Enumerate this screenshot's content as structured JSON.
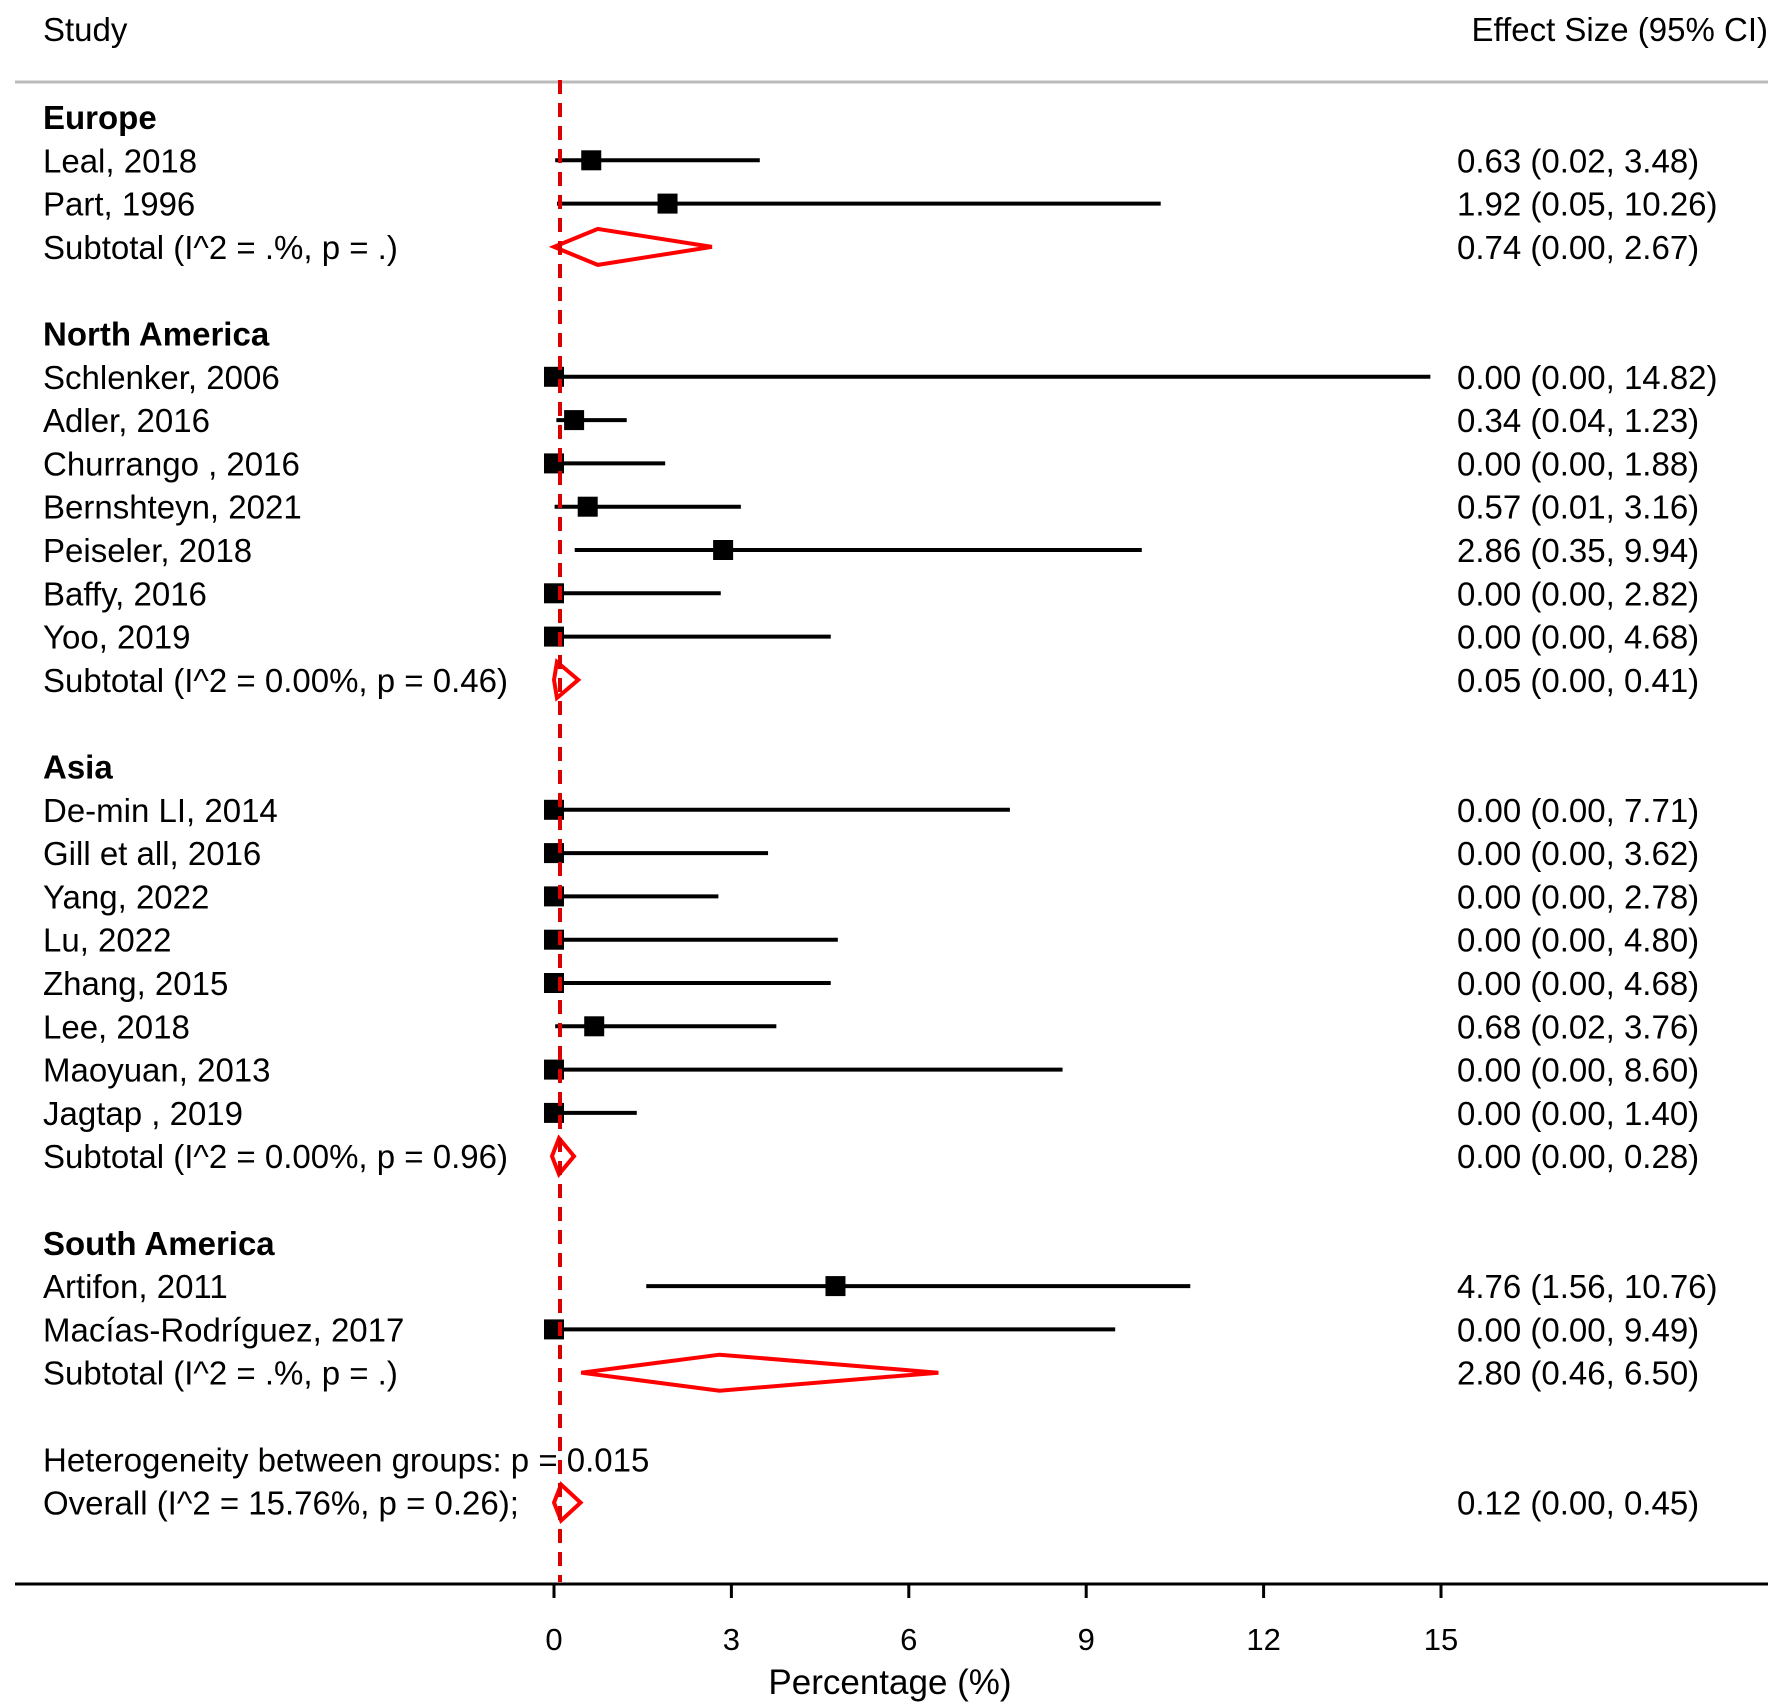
{
  "chart_data": {
    "type": "forest",
    "header": {
      "study": "Study",
      "effect": "Effect Size (95% CI)"
    },
    "xlabel": "Percentage (%)",
    "xticks": [
      0,
      3,
      6,
      9,
      12,
      15
    ],
    "xlim": [
      0,
      15
    ],
    "reference_line": 0,
    "colors": {
      "marker": "#000000",
      "diamond": "#ff0000",
      "reference": "#dd0000",
      "rule": "#bbbbbb"
    },
    "rows": [
      {
        "kind": "group",
        "label": "Europe"
      },
      {
        "kind": "study",
        "label": "Leal, 2018",
        "es": 0.63,
        "lo": 0.02,
        "hi": 3.48,
        "text": "0.63 (0.02, 3.48)"
      },
      {
        "kind": "study",
        "label": "Part, 1996",
        "es": 1.92,
        "lo": 0.05,
        "hi": 10.26,
        "text": "1.92 (0.05, 10.26)"
      },
      {
        "kind": "subtotal",
        "label": "Subtotal  (I^2 = .%, p = .)",
        "es": 0.74,
        "lo": 0.0,
        "hi": 2.67,
        "text": "0.74 (0.00, 2.67)"
      },
      {
        "kind": "gap"
      },
      {
        "kind": "group",
        "label": "North America"
      },
      {
        "kind": "study",
        "label": "Schlenker, 2006",
        "es": 0.0,
        "lo": 0.0,
        "hi": 14.82,
        "text": "0.00 (0.00, 14.82)"
      },
      {
        "kind": "study",
        "label": "Adler, 2016",
        "es": 0.34,
        "lo": 0.04,
        "hi": 1.23,
        "text": "0.34 (0.04, 1.23)"
      },
      {
        "kind": "study",
        "label": "Churrango , 2016",
        "es": 0.0,
        "lo": 0.0,
        "hi": 1.88,
        "text": "0.00 (0.00, 1.88)"
      },
      {
        "kind": "study",
        "label": "Bernshteyn, 2021",
        "es": 0.57,
        "lo": 0.01,
        "hi": 3.16,
        "text": "0.57 (0.01, 3.16)"
      },
      {
        "kind": "study",
        "label": "Peiseler, 2018",
        "es": 2.86,
        "lo": 0.35,
        "hi": 9.94,
        "text": "2.86 (0.35, 9.94)"
      },
      {
        "kind": "study",
        "label": "Baffy, 2016",
        "es": 0.0,
        "lo": 0.0,
        "hi": 2.82,
        "text": "0.00 (0.00, 2.82)"
      },
      {
        "kind": "study",
        "label": "Yoo, 2019",
        "es": 0.0,
        "lo": 0.0,
        "hi": 4.68,
        "text": "0.00 (0.00, 4.68)"
      },
      {
        "kind": "subtotal",
        "label": "Subtotal  (I^2 = 0.00%, p = 0.46)",
        "es": 0.05,
        "lo": 0.0,
        "hi": 0.41,
        "text": "0.05 (0.00, 0.41)"
      },
      {
        "kind": "gap"
      },
      {
        "kind": "group",
        "label": "Asia"
      },
      {
        "kind": "study",
        "label": "De-min LI, 2014",
        "es": 0.0,
        "lo": 0.0,
        "hi": 7.71,
        "text": "0.00 (0.00, 7.71)"
      },
      {
        "kind": "study",
        "label": "Gill et all, 2016",
        "es": 0.0,
        "lo": 0.0,
        "hi": 3.62,
        "text": "0.00 (0.00, 3.62)"
      },
      {
        "kind": "study",
        "label": "Yang, 2022",
        "es": 0.0,
        "lo": 0.0,
        "hi": 2.78,
        "text": "0.00 (0.00, 2.78)"
      },
      {
        "kind": "study",
        "label": "Lu, 2022",
        "es": 0.0,
        "lo": 0.0,
        "hi": 4.8,
        "text": "0.00 (0.00, 4.80)"
      },
      {
        "kind": "study",
        "label": "Zhang, 2015",
        "es": 0.0,
        "lo": 0.0,
        "hi": 4.68,
        "text": "0.00 (0.00, 4.68)"
      },
      {
        "kind": "study",
        "label": "Lee, 2018",
        "es": 0.68,
        "lo": 0.02,
        "hi": 3.76,
        "text": "0.68 (0.02, 3.76)"
      },
      {
        "kind": "study",
        "label": "Maoyuan, 2013",
        "es": 0.0,
        "lo": 0.0,
        "hi": 8.6,
        "text": "0.00 (0.00, 8.60)"
      },
      {
        "kind": "study",
        "label": "Jagtap , 2019",
        "es": 0.0,
        "lo": 0.0,
        "hi": 1.4,
        "text": "0.00 (0.00, 1.40)"
      },
      {
        "kind": "subtotal",
        "label": "Subtotal  (I^2 = 0.00%, p = 0.96)",
        "es": 0.0,
        "lo": 0.0,
        "hi": 0.28,
        "text": "0.00 (0.00, 0.28)"
      },
      {
        "kind": "gap"
      },
      {
        "kind": "group",
        "label": "South America"
      },
      {
        "kind": "study",
        "label": "Artifon, 2011",
        "es": 4.76,
        "lo": 1.56,
        "hi": 10.76,
        "text": "4.76 (1.56, 10.76)"
      },
      {
        "kind": "study",
        "label": "Macías-Rodríguez, 2017",
        "es": 0.0,
        "lo": 0.0,
        "hi": 9.49,
        "text": "0.00 (0.00, 9.49)"
      },
      {
        "kind": "subtotal",
        "label": "Subtotal  (I^2 = .%, p = .)",
        "es": 2.8,
        "lo": 0.46,
        "hi": 6.5,
        "text": "2.80 (0.46, 6.50)"
      },
      {
        "kind": "gap"
      },
      {
        "kind": "note",
        "label": "Heterogeneity between groups: p = 0.015"
      },
      {
        "kind": "subtotal",
        "label": "Overall  (I^2 = 15.76%, p = 0.26);",
        "es": 0.12,
        "lo": 0.0,
        "hi": 0.45,
        "text": "0.12 (0.00, 0.45)"
      }
    ]
  }
}
